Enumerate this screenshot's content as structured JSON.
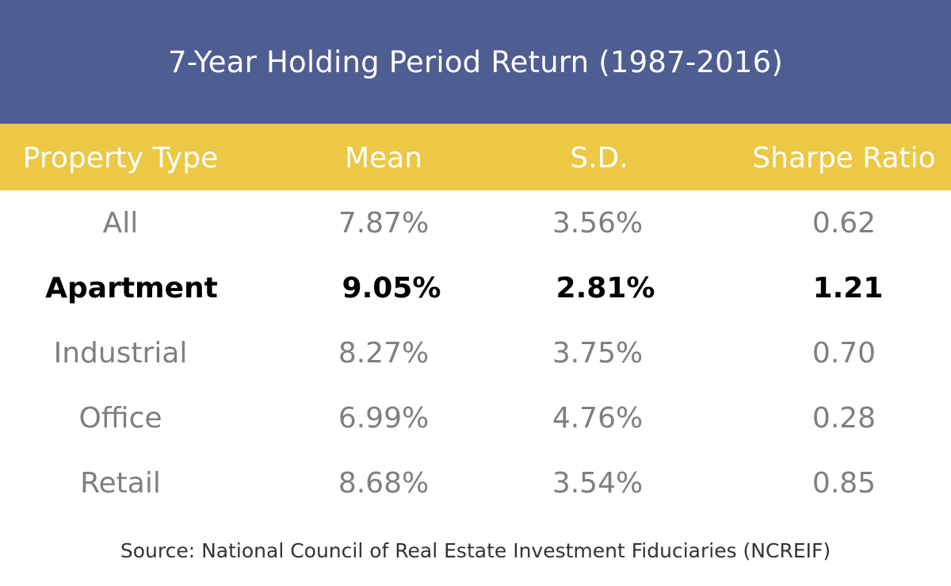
{
  "chart_data": {
    "type": "table",
    "title": "7-Year Holding Period Return (1987-2016)",
    "columns": [
      "Property Type",
      "Mean",
      "S.D.",
      "Sharpe Ratio"
    ],
    "rows": [
      {
        "type": "All",
        "mean": "7.87%",
        "sd": "3.56%",
        "sharpe": "0.62",
        "highlight": false
      },
      {
        "type": "Apartment",
        "mean": "9.05%",
        "sd": "2.81%",
        "sharpe": "1.21",
        "highlight": true
      },
      {
        "type": "Industrial",
        "mean": "8.27%",
        "sd": "3.75%",
        "sharpe": "0.70",
        "highlight": false
      },
      {
        "type": "Office",
        "mean": "6.99%",
        "sd": "4.76%",
        "sharpe": "0.28",
        "highlight": false
      },
      {
        "type": "Retail",
        "mean": "8.68%",
        "sd": "3.54%",
        "sharpe": "0.85",
        "highlight": false
      }
    ],
    "source": "Source: National Council of Real Estate Investment Fiduciaries (NCREIF)",
    "colors": {
      "title_bg": "#4e5d92",
      "header_bg": "#ecc844",
      "body_text": "#7f7f7f",
      "highlight_text": "#000000"
    }
  }
}
